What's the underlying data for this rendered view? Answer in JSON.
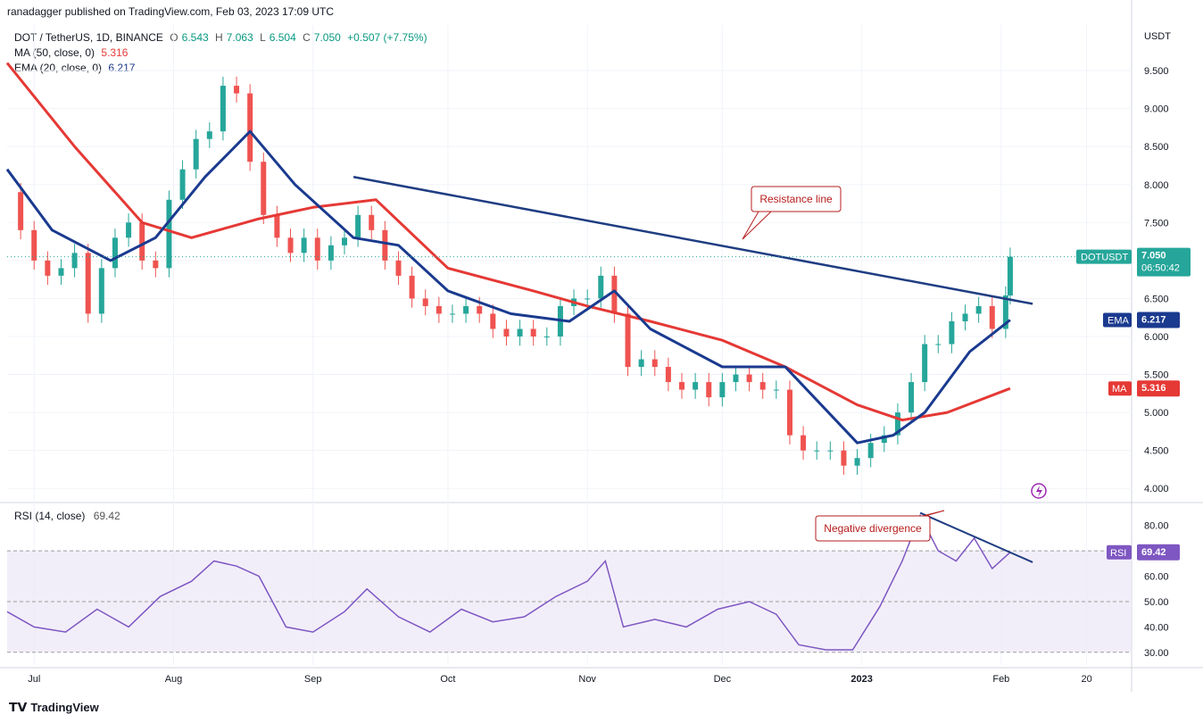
{
  "header": {
    "publisher": "ranadagger published on TradingView.com, Feb 03, 2023 17:09 UTC"
  },
  "legend": {
    "symbol": "DOT / TetherUS, 1D, BINANCE",
    "ohlc": {
      "o_label": "O",
      "o": "6.543",
      "h_label": "H",
      "h": "7.063",
      "l_label": "L",
      "l": "6.504",
      "c_label": "C",
      "c": "7.050",
      "change": "+0.507 (+7.75%)"
    },
    "ma_label": "MA (50, close, 0)",
    "ma_value": "5.316",
    "ema_label": "EMA (20, close, 0)",
    "ema_value": "6.217"
  },
  "rsi_legend": {
    "label": "RSI (14, close)",
    "value": "69.42"
  },
  "footer": {
    "brand": "TradingView"
  },
  "colors": {
    "up": "#26a69a",
    "down": "#ef5350",
    "ema": "#1a3a8f",
    "ma": "#e53935",
    "rsi": "#7e57c2",
    "trend": "#1f3d82"
  },
  "chart_data": [
    {
      "type": "candlestick",
      "title": "DOT / TetherUS, 1D, BINANCE",
      "currency_label": "USDT",
      "ylim": [
        3.85,
        10.1
      ],
      "yticks": [
        "4.000",
        "4.500",
        "5.000",
        "5.500",
        "6.000",
        "6.500",
        "7.000",
        "7.500",
        "8.000",
        "8.500",
        "9.000",
        "9.500"
      ],
      "x_labels": [
        "Jul",
        "Aug",
        "Sep",
        "Oct",
        "Nov",
        "Dec",
        "2023",
        "Feb",
        "20"
      ],
      "x_label_dates": [
        "2022-07-01",
        "2022-08-01",
        "2022-09-01",
        "2022-10-01",
        "2022-11-01",
        "2022-12-01",
        "2023-01-01",
        "2023-02-01",
        "2023-02-20"
      ],
      "x_range": [
        "2022-06-25",
        "2023-03-02"
      ],
      "close_series": [
        [
          "2022-06-25",
          7.9
        ],
        [
          "2022-06-28",
          7.4
        ],
        [
          "2022-07-01",
          7.0
        ],
        [
          "2022-07-04",
          6.8
        ],
        [
          "2022-07-07",
          6.9
        ],
        [
          "2022-07-10",
          7.1
        ],
        [
          "2022-07-13",
          6.3
        ],
        [
          "2022-07-16",
          6.9
        ],
        [
          "2022-07-19",
          7.3
        ],
        [
          "2022-07-22",
          7.5
        ],
        [
          "2022-07-25",
          7.0
        ],
        [
          "2022-07-28",
          6.9
        ],
        [
          "2022-07-31",
          7.8
        ],
        [
          "2022-08-03",
          8.2
        ],
        [
          "2022-08-06",
          8.6
        ],
        [
          "2022-08-09",
          8.7
        ],
        [
          "2022-08-12",
          9.3
        ],
        [
          "2022-08-15",
          9.2
        ],
        [
          "2022-08-18",
          8.3
        ],
        [
          "2022-08-21",
          7.6
        ],
        [
          "2022-08-24",
          7.3
        ],
        [
          "2022-08-27",
          7.1
        ],
        [
          "2022-08-30",
          7.3
        ],
        [
          "2022-09-02",
          7.0
        ],
        [
          "2022-09-05",
          7.2
        ],
        [
          "2022-09-08",
          7.3
        ],
        [
          "2022-09-11",
          7.6
        ],
        [
          "2022-09-14",
          7.4
        ],
        [
          "2022-09-17",
          7.0
        ],
        [
          "2022-09-20",
          6.8
        ],
        [
          "2022-09-23",
          6.5
        ],
        [
          "2022-09-26",
          6.4
        ],
        [
          "2022-09-29",
          6.3
        ],
        [
          "2022-10-02",
          6.3
        ],
        [
          "2022-10-05",
          6.4
        ],
        [
          "2022-10-08",
          6.3
        ],
        [
          "2022-10-11",
          6.1
        ],
        [
          "2022-10-14",
          6.0
        ],
        [
          "2022-10-17",
          6.1
        ],
        [
          "2022-10-20",
          6.0
        ],
        [
          "2022-10-23",
          6.0
        ],
        [
          "2022-10-26",
          6.4
        ],
        [
          "2022-10-29",
          6.5
        ],
        [
          "2022-11-01",
          6.5
        ],
        [
          "2022-11-04",
          6.8
        ],
        [
          "2022-11-07",
          6.3
        ],
        [
          "2022-11-10",
          5.6
        ],
        [
          "2022-11-13",
          5.7
        ],
        [
          "2022-11-16",
          5.6
        ],
        [
          "2022-11-19",
          5.4
        ],
        [
          "2022-11-22",
          5.3
        ],
        [
          "2022-11-25",
          5.4
        ],
        [
          "2022-11-28",
          5.2
        ],
        [
          "2022-12-01",
          5.4
        ],
        [
          "2022-12-04",
          5.5
        ],
        [
          "2022-12-07",
          5.4
        ],
        [
          "2022-12-10",
          5.3
        ],
        [
          "2022-12-13",
          5.3
        ],
        [
          "2022-12-16",
          4.7
        ],
        [
          "2022-12-19",
          4.5
        ],
        [
          "2022-12-22",
          4.5
        ],
        [
          "2022-12-25",
          4.5
        ],
        [
          "2022-12-28",
          4.3
        ],
        [
          "2022-12-31",
          4.4
        ],
        [
          "2023-01-03",
          4.6
        ],
        [
          "2023-01-06",
          4.7
        ],
        [
          "2023-01-09",
          5.0
        ],
        [
          "2023-01-12",
          5.4
        ],
        [
          "2023-01-15",
          5.9
        ],
        [
          "2023-01-18",
          5.9
        ],
        [
          "2023-01-21",
          6.2
        ],
        [
          "2023-01-24",
          6.3
        ],
        [
          "2023-01-27",
          6.4
        ],
        [
          "2023-01-30",
          6.1
        ],
        [
          "2023-02-02",
          6.54
        ],
        [
          "2023-02-03",
          7.05
        ]
      ],
      "series": [
        {
          "name": "MA (50, close, 0)",
          "last": 5.316,
          "points": [
            [
              "2022-06-25",
              9.6
            ],
            [
              "2022-07-10",
              8.5
            ],
            [
              "2022-07-25",
              7.5
            ],
            [
              "2022-08-05",
              7.3
            ],
            [
              "2022-08-20",
              7.55
            ],
            [
              "2022-09-01",
              7.7
            ],
            [
              "2022-09-15",
              7.8
            ],
            [
              "2022-10-01",
              6.9
            ],
            [
              "2022-10-20",
              6.6
            ],
            [
              "2022-11-01",
              6.4
            ],
            [
              "2022-11-15",
              6.2
            ],
            [
              "2022-12-01",
              5.95
            ],
            [
              "2022-12-15",
              5.6
            ],
            [
              "2022-12-31",
              5.1
            ],
            [
              "2023-01-10",
              4.9
            ],
            [
              "2023-01-20",
              5.0
            ],
            [
              "2023-02-03",
              5.316
            ]
          ]
        },
        {
          "name": "EMA (20, close, 0)",
          "last": 6.217,
          "points": [
            [
              "2022-06-25",
              8.2
            ],
            [
              "2022-07-05",
              7.4
            ],
            [
              "2022-07-18",
              7.0
            ],
            [
              "2022-07-28",
              7.3
            ],
            [
              "2022-08-08",
              8.1
            ],
            [
              "2022-08-18",
              8.7
            ],
            [
              "2022-08-28",
              8.0
            ],
            [
              "2022-09-10",
              7.3
            ],
            [
              "2022-09-20",
              7.2
            ],
            [
              "2022-10-01",
              6.6
            ],
            [
              "2022-10-15",
              6.3
            ],
            [
              "2022-10-28",
              6.2
            ],
            [
              "2022-11-07",
              6.6
            ],
            [
              "2022-11-15",
              6.1
            ],
            [
              "2022-12-01",
              5.6
            ],
            [
              "2022-12-15",
              5.6
            ],
            [
              "2022-12-31",
              4.6
            ],
            [
              "2023-01-08",
              4.7
            ],
            [
              "2023-01-15",
              5.0
            ],
            [
              "2023-01-25",
              5.8
            ],
            [
              "2023-02-03",
              6.217
            ]
          ]
        }
      ],
      "trendline": {
        "label": "Resistance line",
        "from": [
          "2022-09-10",
          8.1
        ],
        "to": [
          "2023-02-08",
          6.43
        ]
      },
      "last_price_label": {
        "symbol": "DOTUSDT",
        "price": "7.050",
        "countdown": "06:50:42"
      },
      "ema_tag": {
        "label": "EMA",
        "value": "6.217"
      },
      "ma_tag": {
        "label": "MA",
        "value": "5.316"
      }
    },
    {
      "type": "line",
      "title": "RSI (14, close)",
      "ylim": [
        25,
        88
      ],
      "yticks": [
        "30.00",
        "40.00",
        "50.00",
        "60.00",
        "70.00",
        "80.00"
      ],
      "band": [
        30,
        70
      ],
      "series": [
        {
          "name": "RSI (14, close)",
          "last": 69.42,
          "points": [
            [
              "2022-06-25",
              46
            ],
            [
              "2022-07-01",
              40
            ],
            [
              "2022-07-08",
              38
            ],
            [
              "2022-07-15",
              47
            ],
            [
              "2022-07-22",
              40
            ],
            [
              "2022-07-29",
              52
            ],
            [
              "2022-08-05",
              58
            ],
            [
              "2022-08-10",
              66
            ],
            [
              "2022-08-15",
              64
            ],
            [
              "2022-08-20",
              60
            ],
            [
              "2022-08-26",
              40
            ],
            [
              "2022-09-01",
              38
            ],
            [
              "2022-09-08",
              46
            ],
            [
              "2022-09-13",
              55
            ],
            [
              "2022-09-20",
              44
            ],
            [
              "2022-09-27",
              38
            ],
            [
              "2022-10-04",
              47
            ],
            [
              "2022-10-11",
              42
            ],
            [
              "2022-10-18",
              44
            ],
            [
              "2022-10-25",
              52
            ],
            [
              "2022-11-01",
              58
            ],
            [
              "2022-11-05",
              66
            ],
            [
              "2022-11-09",
              40
            ],
            [
              "2022-11-16",
              43
            ],
            [
              "2022-11-23",
              40
            ],
            [
              "2022-11-30",
              47
            ],
            [
              "2022-12-07",
              50
            ],
            [
              "2022-12-13",
              45
            ],
            [
              "2022-12-18",
              33
            ],
            [
              "2022-12-24",
              31
            ],
            [
              "2022-12-30",
              31
            ],
            [
              "2023-01-05",
              48
            ],
            [
              "2023-01-10",
              66
            ],
            [
              "2023-01-14",
              84
            ],
            [
              "2023-01-18",
              70
            ],
            [
              "2023-01-22",
              66
            ],
            [
              "2023-01-26",
              75
            ],
            [
              "2023-01-30",
              63
            ],
            [
              "2023-02-03",
              69.42
            ]
          ]
        }
      ],
      "trendline": {
        "label": "Negative divergence",
        "from": [
          "2023-01-14",
          85
        ],
        "to": [
          "2023-02-08",
          65.5
        ]
      }
    }
  ]
}
